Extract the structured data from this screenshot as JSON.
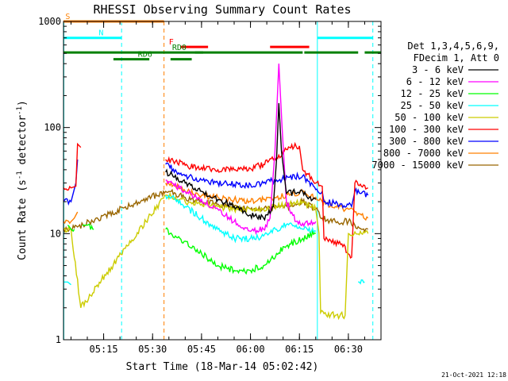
{
  "chart_data": {
    "type": "line",
    "title": "RHESSI Observing Summary Count Rates",
    "xlabel": "Start Time (18-Mar-14 05:02:42)",
    "ylabel_pre": "Count Rate (s",
    "ylabel_sup": "-1",
    "ylabel_post": " detector",
    "ylabel_sup2": "-1",
    "ylabel_end": ")",
    "yscale": "log",
    "ylim": [
      1,
      1000
    ],
    "xlim_min": [
      302.7,
      400
    ],
    "x_ticks": [
      {
        "min": 315,
        "label": "05:15"
      },
      {
        "min": 330,
        "label": "05:30"
      },
      {
        "min": 345,
        "label": "05:45"
      },
      {
        "min": 360,
        "label": "06:00"
      },
      {
        "min": 375,
        "label": "06:15"
      },
      {
        "min": 390,
        "label": "06:30"
      }
    ],
    "y_ticks": [
      {
        "value": 1,
        "label": "1"
      },
      {
        "value": 10,
        "label": "10"
      },
      {
        "value": 100,
        "label": "100"
      },
      {
        "value": 1000,
        "label": "1000"
      }
    ],
    "legend_header": [
      "Det 1,3,4,5,6,9,",
      "FDecim 1, Att 0"
    ],
    "timestamp": "21-Oct-2021 12:18",
    "flags": [
      {
        "label": "S",
        "color": "#ff8000",
        "y": 1000,
        "segments": [
          [
            302.7,
            333.5
          ]
        ],
        "label_at": 302.8
      },
      {
        "label": "N",
        "color": "#00ffff",
        "y": 700,
        "segments": [
          [
            302.7,
            320.5
          ],
          [
            380.5,
            397.5
          ]
        ],
        "label_at": 313
      },
      {
        "label": "F",
        "color": "#ff0000",
        "y": 575,
        "segments": [
          [
            338.5,
            347
          ],
          [
            366,
            378
          ]
        ],
        "label_at": 334.5
      },
      {
        "label": "RD0",
        "color": "#008000",
        "y": 510,
        "segments": [
          [
            302.7,
            345.5
          ],
          [
            343,
            376
          ],
          [
            376.5,
            393
          ],
          [
            395,
            400
          ]
        ],
        "label_at": 335.5
      },
      {
        "label": "RD6",
        "color": "#008000",
        "y": 440,
        "segments": [
          [
            318,
            329
          ],
          [
            335.5,
            342
          ]
        ],
        "label_at": 325
      }
    ],
    "vlines": [
      {
        "min": 302.8,
        "color": "#00ffff",
        "style": "solid"
      },
      {
        "min": 320.5,
        "color": "#00ffff",
        "style": "dashed"
      },
      {
        "min": 333.5,
        "color": "#ff8000",
        "style": "dashed"
      },
      {
        "min": 380.5,
        "color": "#00ffff",
        "style": "solid"
      },
      {
        "min": 397.5,
        "color": "#00ffff",
        "style": "dashed"
      }
    ],
    "series": [
      {
        "name": "3 - 6 keV",
        "color": "#000000",
        "points": [
          [
            334,
            38
          ],
          [
            336,
            36
          ],
          [
            340,
            30
          ],
          [
            345,
            25
          ],
          [
            350,
            21
          ],
          [
            355,
            18
          ],
          [
            360,
            15
          ],
          [
            364,
            14
          ],
          [
            367,
            18
          ],
          [
            368,
            50
          ],
          [
            368.7,
            170
          ],
          [
            369.5,
            60
          ],
          [
            371,
            24
          ],
          [
            376,
            25
          ],
          [
            378,
            22
          ],
          [
            380,
            21
          ]
        ]
      },
      {
        "name": "6 - 12 keV",
        "color": "#ff00ff",
        "points": [
          [
            334,
            32
          ],
          [
            336,
            30
          ],
          [
            340,
            25
          ],
          [
            345,
            21
          ],
          [
            350,
            17
          ],
          [
            355,
            13
          ],
          [
            360,
            10.5
          ],
          [
            364,
            11
          ],
          [
            366,
            14
          ],
          [
            367.5,
            60
          ],
          [
            368.7,
            400
          ],
          [
            369.7,
            100
          ],
          [
            371,
            20
          ],
          [
            374,
            13
          ],
          [
            376,
            12.5
          ],
          [
            380,
            13
          ]
        ]
      },
      {
        "name": "12 - 25 keV",
        "color": "#00ff00",
        "points": [
          [
            304,
            12
          ],
          [
            306,
            11
          ],
          [
            308,
            0
          ],
          [
            308.5,
            12
          ],
          [
            310,
            12
          ],
          [
            312,
            11
          ],
          [
            314,
            0
          ],
          [
            334,
            11
          ],
          [
            337,
            9.5
          ],
          [
            340,
            8.5
          ],
          [
            345,
            6.5
          ],
          [
            350,
            5
          ],
          [
            355,
            4.5
          ],
          [
            360,
            4.5
          ],
          [
            364,
            5
          ],
          [
            366,
            5.5
          ],
          [
            368,
            6.5
          ],
          [
            372,
            8
          ],
          [
            376,
            9
          ],
          [
            380,
            10
          ]
        ]
      },
      {
        "name": "25 - 50 keV",
        "color": "#00ffff",
        "points": [
          [
            302.7,
            3.5
          ],
          [
            304,
            3.5
          ],
          [
            305,
            3.3
          ],
          [
            306,
            0
          ],
          [
            334,
            23
          ],
          [
            337,
            21
          ],
          [
            340,
            18
          ],
          [
            345,
            14
          ],
          [
            350,
            11
          ],
          [
            355,
            9
          ],
          [
            360,
            9
          ],
          [
            364,
            9.5
          ],
          [
            368,
            11
          ],
          [
            372,
            12.5
          ],
          [
            376,
            11
          ],
          [
            380,
            10.5
          ],
          [
            380.5,
            0
          ],
          [
            393,
            3.5
          ],
          [
            395,
            3.5
          ]
        ]
      },
      {
        "name": "50 - 100 keV",
        "color": "#cccc00",
        "points": [
          [
            302.7,
            11
          ],
          [
            305,
            11
          ],
          [
            308,
            2
          ],
          [
            334,
            23
          ],
          [
            337,
            22
          ],
          [
            340,
            20
          ],
          [
            345,
            19
          ],
          [
            350,
            18
          ],
          [
            355,
            17
          ],
          [
            360,
            17
          ],
          [
            364,
            17
          ],
          [
            368,
            18
          ],
          [
            372,
            19
          ],
          [
            376,
            20
          ],
          [
            380,
            17
          ],
          [
            381,
            10
          ],
          [
            381.5,
            1.8
          ],
          [
            386,
            1.7
          ],
          [
            389,
            1.7
          ],
          [
            390,
            10
          ],
          [
            394,
            10
          ],
          [
            396,
            10
          ]
        ]
      },
      {
        "name": "100 - 300 keV",
        "color": "#ff0000",
        "points": [
          [
            302.7,
            27
          ],
          [
            305,
            27
          ],
          [
            306.5,
            28
          ],
          [
            307,
            70
          ],
          [
            308,
            65
          ],
          [
            309,
            0
          ],
          [
            334,
            50
          ],
          [
            337,
            48
          ],
          [
            340,
            44
          ],
          [
            345,
            42
          ],
          [
            350,
            40
          ],
          [
            355,
            40
          ],
          [
            360,
            41
          ],
          [
            364,
            45
          ],
          [
            368,
            52
          ],
          [
            372,
            65
          ],
          [
            375,
            67
          ],
          [
            376,
            40
          ],
          [
            380,
            30
          ],
          [
            382,
            28
          ],
          [
            382.5,
            9
          ],
          [
            388,
            8
          ],
          [
            391,
            6
          ],
          [
            392,
            30
          ],
          [
            394,
            28
          ],
          [
            396,
            27
          ]
        ]
      },
      {
        "name": "300 - 800 keV",
        "color": "#0000ff",
        "points": [
          [
            302.7,
            20
          ],
          [
            305,
            20
          ],
          [
            306.5,
            30
          ],
          [
            307,
            50
          ],
          [
            308,
            0
          ],
          [
            334,
            45
          ],
          [
            337,
            40
          ],
          [
            340,
            35
          ],
          [
            345,
            32
          ],
          [
            350,
            30
          ],
          [
            355,
            29
          ],
          [
            360,
            29
          ],
          [
            364,
            30
          ],
          [
            368,
            32
          ],
          [
            372,
            34
          ],
          [
            376,
            35
          ],
          [
            380,
            26
          ],
          [
            382,
            25
          ],
          [
            382.5,
            20
          ],
          [
            388,
            19
          ],
          [
            391,
            18
          ],
          [
            392,
            25
          ],
          [
            394,
            24
          ],
          [
            396,
            23
          ]
        ]
      },
      {
        "name": "800 - 7000 keV",
        "color": "#ff8000",
        "points": [
          [
            302.7,
            13
          ],
          [
            305,
            13
          ],
          [
            306,
            14
          ],
          [
            307,
            16
          ],
          [
            308,
            0
          ],
          [
            334,
            30
          ],
          [
            337,
            28
          ],
          [
            340,
            25
          ],
          [
            345,
            23
          ],
          [
            350,
            22
          ],
          [
            355,
            21
          ],
          [
            360,
            20
          ],
          [
            364,
            21
          ],
          [
            368,
            22
          ],
          [
            372,
            23
          ],
          [
            376,
            25
          ],
          [
            380,
            22
          ],
          [
            382,
            20
          ],
          [
            386,
            18
          ],
          [
            390,
            17
          ],
          [
            392,
            16
          ],
          [
            394,
            15
          ],
          [
            396,
            14
          ]
        ]
      },
      {
        "name": "7000 - 15000 keV",
        "color": "#996600",
        "points": [
          [
            302.7,
            11
          ],
          [
            305,
            11
          ],
          [
            334,
            25
          ],
          [
            337,
            24
          ],
          [
            340,
            22
          ],
          [
            345,
            20
          ],
          [
            350,
            19
          ],
          [
            355,
            18
          ],
          [
            360,
            17
          ],
          [
            364,
            17
          ],
          [
            368,
            18
          ],
          [
            372,
            18
          ],
          [
            376,
            20
          ],
          [
            380,
            17
          ],
          [
            382,
            14
          ],
          [
            386,
            13
          ],
          [
            390,
            13
          ],
          [
            392,
            12
          ],
          [
            394,
            11
          ],
          [
            396,
            11
          ]
        ]
      }
    ]
  }
}
